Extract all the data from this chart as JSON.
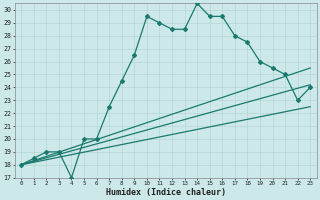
{
  "xlabel": "Humidex (Indice chaleur)",
  "xlim": [
    -0.5,
    23.5
  ],
  "ylim": [
    17,
    30.5
  ],
  "yticks": [
    17,
    18,
    19,
    20,
    21,
    22,
    23,
    24,
    25,
    26,
    27,
    28,
    29,
    30
  ],
  "xticks": [
    0,
    1,
    2,
    3,
    4,
    5,
    6,
    7,
    8,
    9,
    10,
    11,
    12,
    13,
    14,
    15,
    16,
    17,
    18,
    19,
    20,
    21,
    22,
    23
  ],
  "bg_color": "#cce8e8",
  "grid_color": "#b0d4d4",
  "line_color": "#1a7a6e",
  "curve1_x": [
    0,
    1,
    2,
    3,
    4,
    5,
    6,
    7,
    8,
    9,
    10,
    11,
    12,
    13,
    14,
    15,
    16,
    17,
    18,
    19,
    20,
    21,
    22,
    23
  ],
  "curve1_y": [
    18,
    18.5,
    19,
    19,
    17,
    20,
    20,
    22.5,
    24.5,
    26.5,
    29.5,
    29,
    28.5,
    28.5,
    30.5,
    29.5,
    29.5,
    28,
    27.5,
    26,
    25.5,
    25,
    23,
    24
  ],
  "line2_x": [
    0,
    23
  ],
  "line2_y": [
    18.0,
    25.5
  ],
  "line3_x": [
    0,
    23
  ],
  "line3_y": [
    18.0,
    24.2
  ],
  "line4_x": [
    0,
    23
  ],
  "line4_y": [
    18.0,
    22.5
  ],
  "marker": "D",
  "marker_size": 2.0,
  "line_width": 0.9,
  "tick_fontsize": 5.0,
  "xlabel_fontsize": 6.0
}
